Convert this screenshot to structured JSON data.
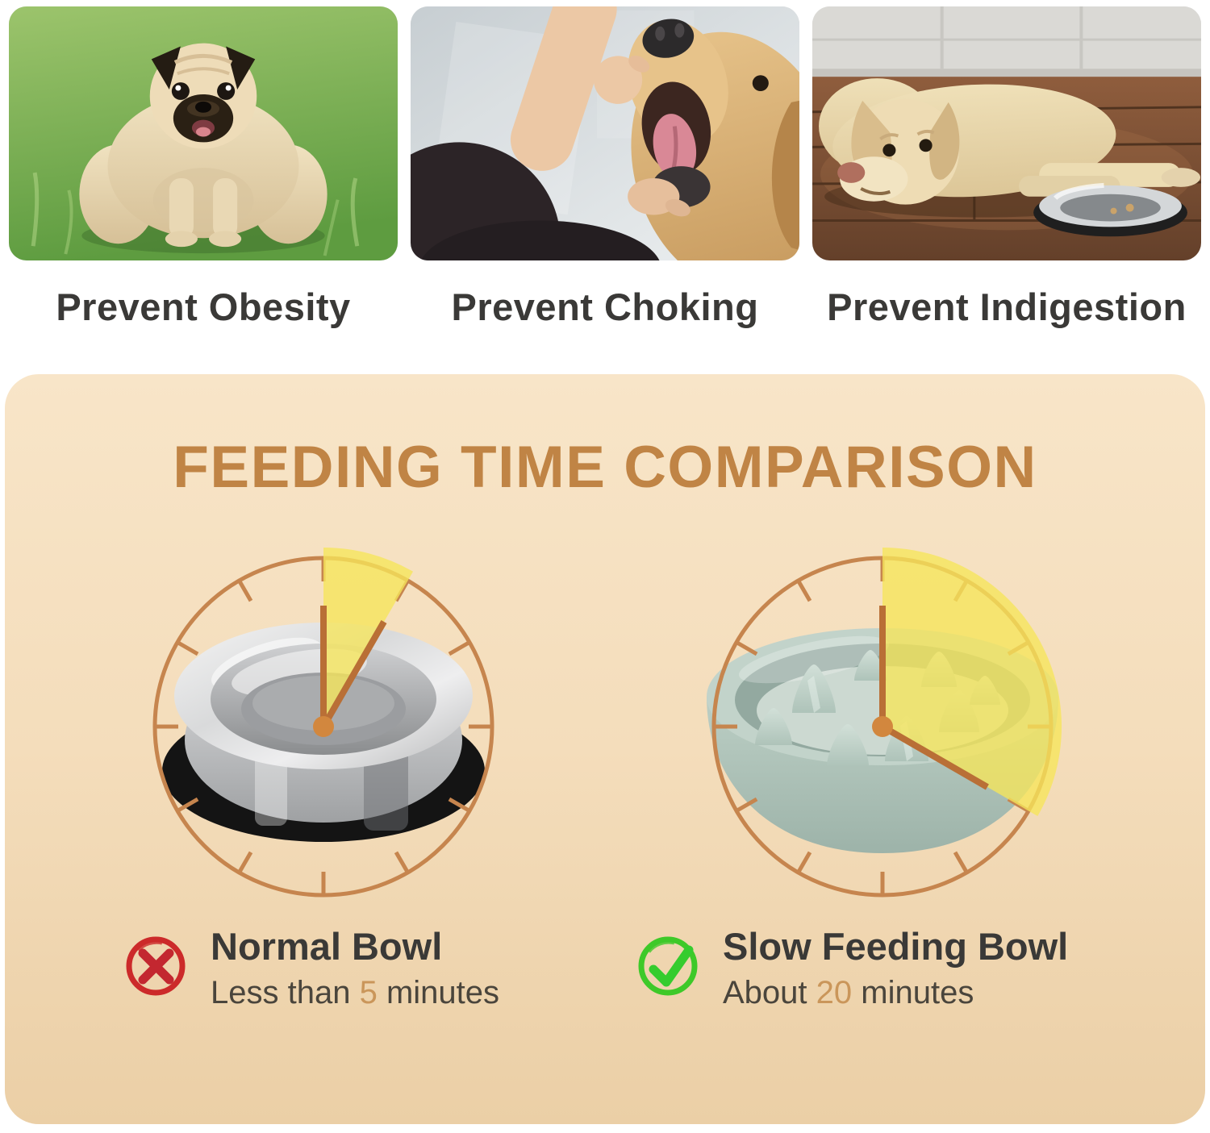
{
  "benefits": [
    {
      "caption": "Prevent Obesity",
      "photo": "obese-pug-on-grass"
    },
    {
      "caption": "Prevent Choking",
      "photo": "hand-checking-dog-mouth"
    },
    {
      "caption": "Prevent Indigestion",
      "photo": "dog-lying-beside-bowl"
    }
  ],
  "comparison": {
    "title": "FEEDING TIME COMPARISON",
    "clocks": [
      {
        "bowl": "normal-stainless-bowl",
        "minutes": 5,
        "sector_degrees": 30
      },
      {
        "bowl": "slow-feeding-bowl",
        "minutes": 20,
        "sector_degrees": 120
      }
    ],
    "normal": {
      "icon": "x-mark-icon",
      "name": "Normal Bowl",
      "time_prefix": "Less than ",
      "time_value": "5",
      "time_suffix": " minutes"
    },
    "slow": {
      "icon": "check-mark-icon",
      "name": "Slow Feeding Bowl",
      "time_prefix": "About ",
      "time_value": "20",
      "time_suffix": " minutes"
    }
  },
  "colors": {
    "title_accent": "#c08445",
    "clock_ring": "#c6854e",
    "clock_hand": "#b96f36",
    "center_dot": "#d2873e",
    "sector_yellow": "#f6e65a",
    "number_accent": "#ca965a",
    "x_red": "#cc2a2a",
    "check_green": "#3ec929",
    "heading_text": "#3a3937"
  }
}
